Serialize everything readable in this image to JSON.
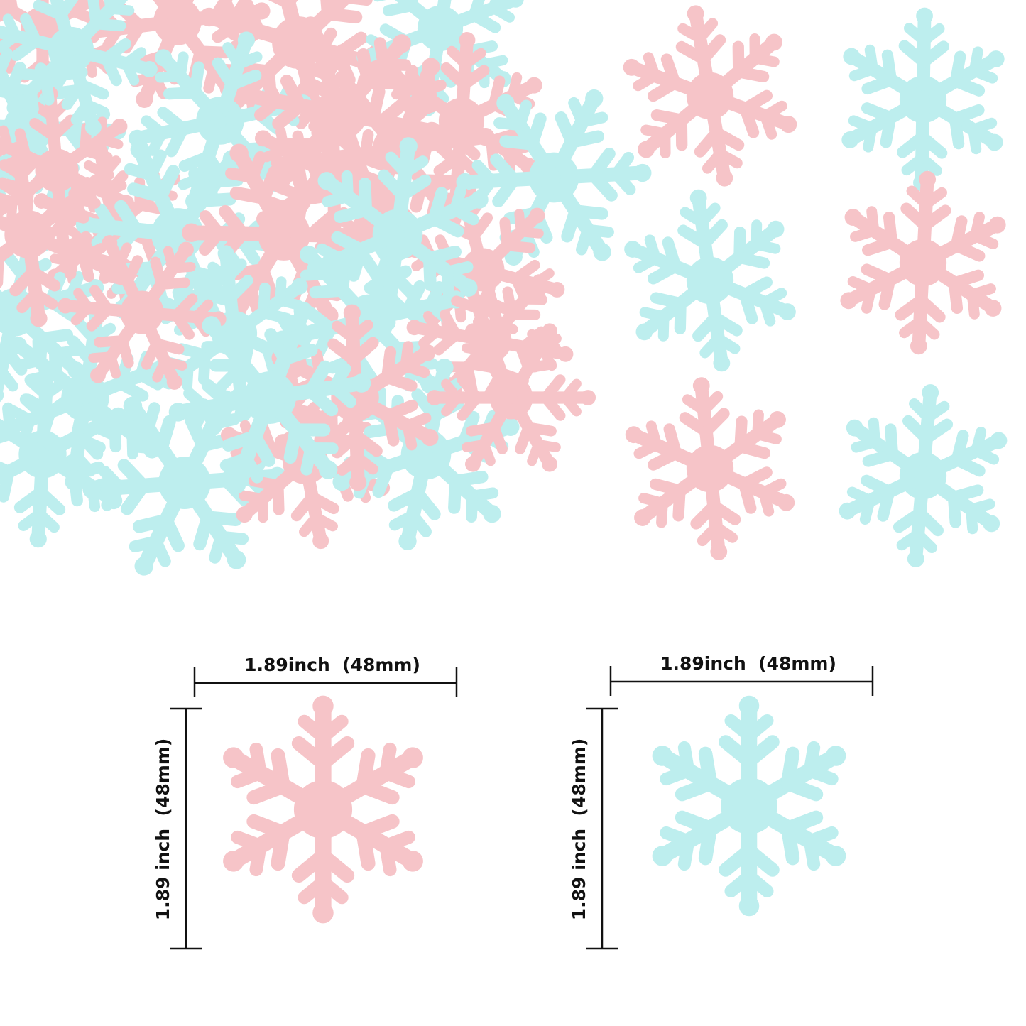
{
  "colors": {
    "pink": "#f6c4c8",
    "blue": "#bdeeee",
    "line": "#111111"
  },
  "dimensions": {
    "pink": {
      "width_label": "1.89inch  (48mm)",
      "height_label": "1.89 inch  (48mm)"
    },
    "blue": {
      "width_label": "1.89inch  (48mm)",
      "height_label": "1.89 inch  (48mm)"
    }
  }
}
